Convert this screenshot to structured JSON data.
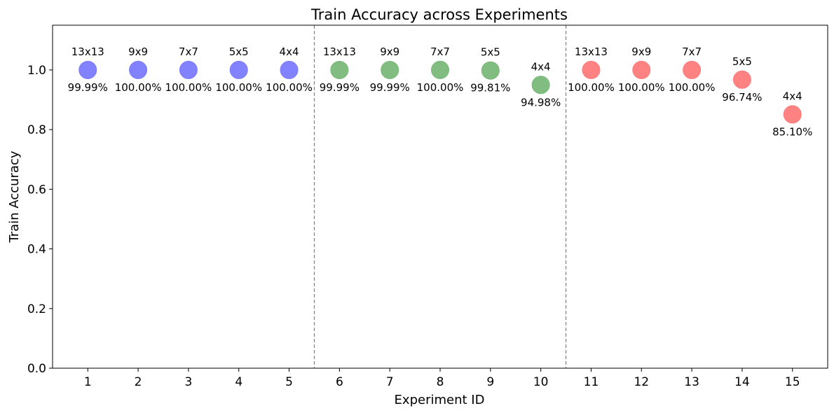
{
  "chart_data": {
    "type": "scatter",
    "title": "Train Accuracy across Experiments",
    "xlabel": "Experiment ID",
    "ylabel": "Train Accuracy",
    "ylim": [
      0,
      1.15
    ],
    "xlim": [
      0.3,
      15.7
    ],
    "xticks": [
      "1",
      "2",
      "3",
      "4",
      "5",
      "6",
      "7",
      "8",
      "9",
      "10",
      "11",
      "12",
      "13",
      "14",
      "15"
    ],
    "yticks": [
      "0.0",
      "0.2",
      "0.4",
      "0.6",
      "0.8",
      "1.0"
    ],
    "separators": [
      5.5,
      10.5
    ],
    "grid": false,
    "points": [
      {
        "x": 1,
        "y": 0.9999,
        "size_label": "13x13",
        "value_label": "99.99%",
        "color": "#7b7bff"
      },
      {
        "x": 2,
        "y": 1.0,
        "size_label": "9x9",
        "value_label": "100.00%",
        "color": "#7b7bff"
      },
      {
        "x": 3,
        "y": 1.0,
        "size_label": "7x7",
        "value_label": "100.00%",
        "color": "#7b7bff"
      },
      {
        "x": 4,
        "y": 1.0,
        "size_label": "5x5",
        "value_label": "100.00%",
        "color": "#7b7bff"
      },
      {
        "x": 5,
        "y": 1.0,
        "size_label": "4x4",
        "value_label": "100.00%",
        "color": "#7b7bff"
      },
      {
        "x": 6,
        "y": 0.9999,
        "size_label": "13x13",
        "value_label": "99.99%",
        "color": "#7ab97a"
      },
      {
        "x": 7,
        "y": 0.9999,
        "size_label": "9x9",
        "value_label": "99.99%",
        "color": "#7ab97a"
      },
      {
        "x": 8,
        "y": 1.0,
        "size_label": "7x7",
        "value_label": "100.00%",
        "color": "#7ab97a"
      },
      {
        "x": 9,
        "y": 0.9981,
        "size_label": "5x5",
        "value_label": "99.81%",
        "color": "#7ab97a"
      },
      {
        "x": 10,
        "y": 0.9498,
        "size_label": "4x4",
        "value_label": "94.98%",
        "color": "#7ab97a"
      },
      {
        "x": 11,
        "y": 1.0,
        "size_label": "13x13",
        "value_label": "100.00%",
        "color": "#ff7b7b"
      },
      {
        "x": 12,
        "y": 1.0,
        "size_label": "9x9",
        "value_label": "100.00%",
        "color": "#ff7b7b"
      },
      {
        "x": 13,
        "y": 1.0,
        "size_label": "7x7",
        "value_label": "100.00%",
        "color": "#ff7b7b"
      },
      {
        "x": 14,
        "y": 0.9674,
        "size_label": "5x5",
        "value_label": "96.74%",
        "color": "#ff7b7b"
      },
      {
        "x": 15,
        "y": 0.851,
        "size_label": "4x4",
        "value_label": "85.10%",
        "color": "#ff7b7b"
      }
    ]
  }
}
